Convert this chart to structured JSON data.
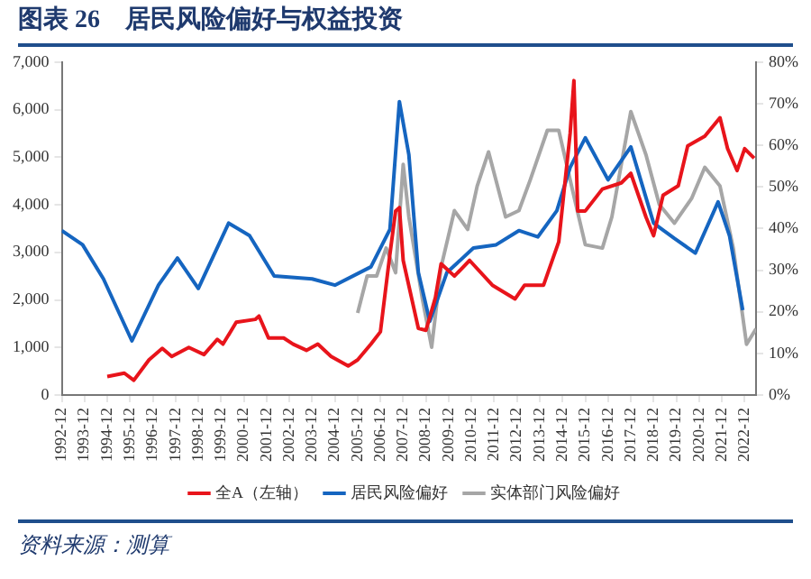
{
  "chart_data": {
    "type": "line",
    "title": "图表 26　居民风险偏好与权益投资",
    "annotations": [
      "资料来源：测算"
    ],
    "xlim": [
      "1992-12",
      "2023-06"
    ],
    "xticks": [
      "1992-12",
      "1993-12",
      "1994-12",
      "1995-12",
      "1996-12",
      "1997-12",
      "1998-12",
      "1999-12",
      "2000-12",
      "2001-12",
      "2002-12",
      "2003-12",
      "2004-12",
      "2005-12",
      "2006-12",
      "2007-12",
      "2008-12",
      "2009-12",
      "2010-12",
      "2011-12",
      "2012-12",
      "2013-12",
      "2014-12",
      "2015-12",
      "2016-12",
      "2017-12",
      "2018-12",
      "2019-12",
      "2020-12",
      "2021-12",
      "2022-12"
    ],
    "ylim": [
      0,
      7000
    ],
    "yticks": [
      0,
      {
        "value": 1000,
        "label": "1,000"
      },
      {
        "value": 2000,
        "label": "2,000"
      },
      {
        "value": 3000,
        "label": "3,000"
      },
      {
        "value": 4000,
        "label": "4,000"
      },
      {
        "value": 5000,
        "label": "5,000"
      },
      {
        "value": 6000,
        "label": "6,000"
      },
      {
        "value": 7000,
        "label": "7,000"
      }
    ],
    "y2lim": [
      0,
      80
    ],
    "y2ticks": [
      {
        "value": 0,
        "label": "0%"
      },
      {
        "value": 10,
        "label": "10%"
      },
      {
        "value": 20,
        "label": "20%"
      },
      {
        "value": 30,
        "label": "30%"
      },
      {
        "value": 40,
        "label": "40%"
      },
      {
        "value": 50,
        "label": "50%"
      },
      {
        "value": 60,
        "label": "60%"
      },
      {
        "value": 70,
        "label": "70%"
      },
      {
        "value": 80,
        "label": "80%"
      }
    ],
    "grid": false,
    "legend": "bottom",
    "marker": "none",
    "line_style": "solid",
    "series": [
      {
        "name": "全A（左轴）",
        "color": "#e8141b",
        "x": [
          "1994-12",
          "1995-09",
          "1996-02",
          "1996-10",
          "1997-05",
          "1997-10",
          "1998-07",
          "1999-03",
          "1999-10",
          "2000-01",
          "2000-08",
          "2001-06",
          "2001-08",
          "2002-01",
          "2002-09",
          "2003-02",
          "2003-09",
          "2004-03",
          "2004-10",
          "2005-07",
          "2005-12",
          "2006-07",
          "2006-12",
          "2007-05",
          "2007-08",
          "2007-10",
          "2007-12",
          "2008-08",
          "2008-12",
          "2009-05",
          "2009-08",
          "2010-03",
          "2010-11",
          "2011-11",
          "2012-11",
          "2013-04",
          "2014-02",
          "2014-10",
          "2015-04",
          "2015-06",
          "2015-08",
          "2015-12",
          "2016-09",
          "2017-07",
          "2017-12",
          "2018-08",
          "2018-12",
          "2019-05",
          "2020-01",
          "2020-06",
          "2021-03",
          "2021-11",
          "2022-03",
          "2022-08",
          "2022-12",
          "2023-05"
        ],
        "values": [
          390,
          460,
          310,
          740,
          980,
          810,
          1000,
          850,
          1170,
          1070,
          1530,
          1590,
          1660,
          1200,
          1200,
          1070,
          940,
          1070,
          810,
          610,
          740,
          1070,
          1330,
          2960,
          3870,
          3940,
          2830,
          1400,
          1360,
          2050,
          2760,
          2500,
          2830,
          2310,
          2020,
          2310,
          2310,
          3220,
          5500,
          6610,
          3870,
          3870,
          4330,
          4460,
          4660,
          3740,
          3350,
          4200,
          4400,
          5240,
          5440,
          5830,
          5180,
          4720,
          5180,
          4980
        ]
      },
      {
        "name": "居民风险偏好",
        "color": "#1565c0",
        "axis": "y2",
        "x": [
          "1992-12",
          "1993-11",
          "1994-10",
          "1996-01",
          "1997-03",
          "1998-01",
          "1998-12",
          "2000-04",
          "2001-03",
          "2002-04",
          "2003-12",
          "2004-12",
          "2006-07",
          "2007-05",
          "2007-10",
          "2008-03",
          "2008-08",
          "2009-02",
          "2009-11",
          "2011-01",
          "2012-01",
          "2013-01",
          "2013-11",
          "2014-09",
          "2015-04",
          "2015-12",
          "2016-12",
          "2017-12",
          "2018-12",
          "2019-11",
          "2020-10",
          "2021-10",
          "2022-04",
          "2022-11"
        ],
        "values": [
          39.5,
          36.1,
          27.9,
          13.0,
          26.4,
          32.9,
          25.6,
          41.3,
          38.3,
          28.6,
          27.9,
          26.4,
          30.8,
          39.8,
          70.5,
          57.7,
          29.4,
          17.7,
          29.4,
          35.3,
          36.1,
          39.5,
          38.0,
          44.3,
          54.7,
          61.8,
          51.7,
          59.6,
          41.3,
          37.6,
          34.1,
          46.4,
          38.3,
          20.4
        ]
      },
      {
        "name": "实体部门风险偏好",
        "color": "#a6a6a6",
        "axis": "y2",
        "x": [
          "2005-12",
          "2006-05",
          "2006-10",
          "2007-03",
          "2007-08",
          "2007-12",
          "2008-03",
          "2008-10",
          "2009-03",
          "2009-08",
          "2010-03",
          "2010-10",
          "2011-03",
          "2011-09",
          "2012-06",
          "2013-01",
          "2013-07",
          "2014-04",
          "2014-10",
          "2015-07",
          "2015-12",
          "2016-09",
          "2017-02",
          "2017-12",
          "2018-08",
          "2019-03",
          "2019-11",
          "2020-08",
          "2021-03",
          "2021-11",
          "2022-06",
          "2023-01",
          "2023-06"
        ],
        "values": [
          19.7,
          28.6,
          28.6,
          35.3,
          29.4,
          55.4,
          42.8,
          23.4,
          11.5,
          30.8,
          44.3,
          39.8,
          50.2,
          58.4,
          42.8,
          44.3,
          51.7,
          63.6,
          63.6,
          45.8,
          36.1,
          35.3,
          42.8,
          68.1,
          57.7,
          45.8,
          41.3,
          47.2,
          54.7,
          50.2,
          35.3,
          12.2,
          15.9
        ]
      }
    ]
  }
}
